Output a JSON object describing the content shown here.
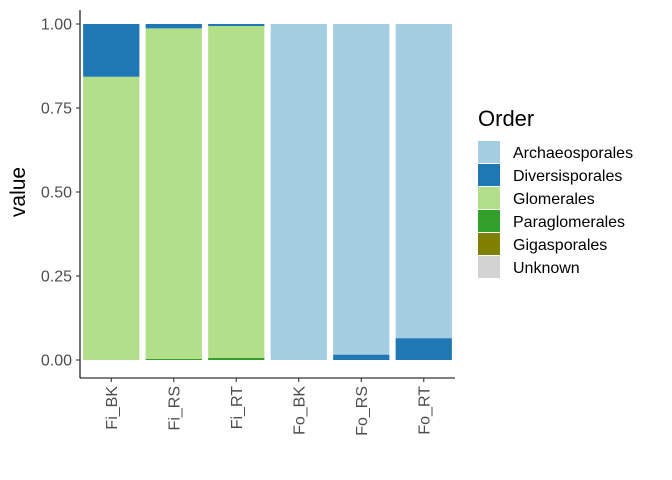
{
  "chart_data": {
    "type": "bar",
    "stacked": true,
    "ylabel": "value",
    "xlabel": "",
    "ylim": [
      0,
      1
    ],
    "yticks": [
      "0.00",
      "0.25",
      "0.50",
      "0.75",
      "1.00"
    ],
    "ytick_values": [
      0,
      0.25,
      0.5,
      0.75,
      1
    ],
    "grid": false,
    "legend_position": "right",
    "legend_title": "Order",
    "categories": [
      "Fi_BK",
      "Fi_RS",
      "Fi_RT",
      "Fo_BK",
      "Fo_RS",
      "Fo_RT"
    ],
    "series": [
      {
        "name": "Archaeosporales",
        "color": "#A6CEE3",
        "values": [
          0,
          0,
          0,
          1,
          0.984,
          0.935
        ]
      },
      {
        "name": "Diversisporales",
        "color": "#1F78B4",
        "values": [
          0.157,
          0.013,
          0.006,
          0,
          0.016,
          0.065
        ]
      },
      {
        "name": "Glomerales",
        "color": "#B2DF8A",
        "values": [
          0.843,
          0.984,
          0.988,
          0,
          0,
          0
        ]
      },
      {
        "name": "Paraglomerales",
        "color": "#33A02C",
        "values": [
          0,
          0.003,
          0.006,
          0,
          0,
          0
        ]
      },
      {
        "name": "Gigasporales",
        "color": "#808000",
        "values": [
          0,
          0,
          0,
          0,
          0,
          0
        ]
      },
      {
        "name": "Unknown",
        "color": "#D3D3D3",
        "values": [
          0,
          0,
          0,
          0,
          0,
          0
        ]
      }
    ]
  }
}
